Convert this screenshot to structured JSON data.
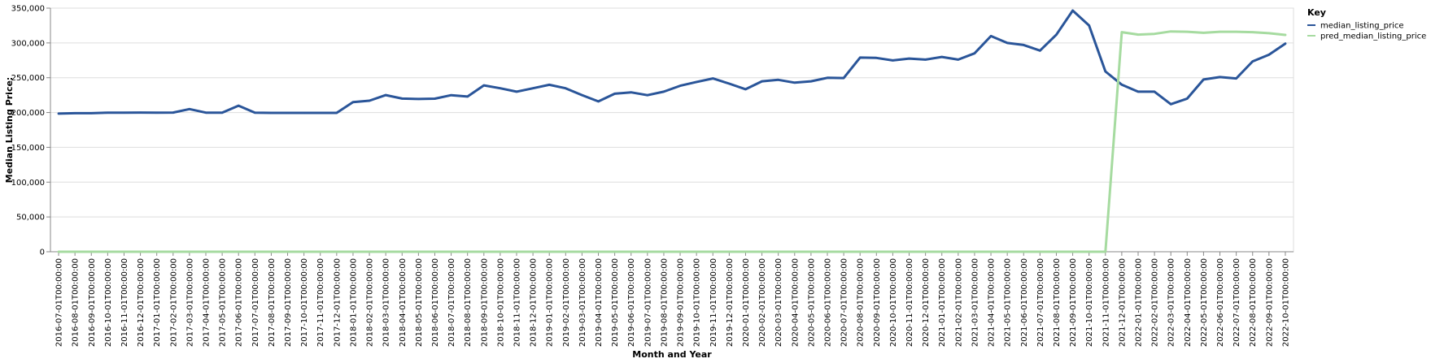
{
  "chart_data": {
    "type": "line",
    "xlabel": "Month and Year",
    "ylabel": "Median Listing Price:",
    "ylim": [
      0,
      350000
    ],
    "y_ticks": [
      "0",
      "50,000",
      "100,000",
      "150,000",
      "200,000",
      "250,000",
      "300,000",
      "350,000"
    ],
    "grid": true,
    "legend": {
      "title": "Key",
      "placement": "right"
    },
    "x": [
      "2016-07-01T00:00:00",
      "2016-08-01T00:00:00",
      "2016-09-01T00:00:00",
      "2016-10-01T00:00:00",
      "2016-11-01T00:00:00",
      "2016-12-01T00:00:00",
      "2017-01-01T00:00:00",
      "2017-02-01T00:00:00",
      "2017-03-01T00:00:00",
      "2017-04-01T00:00:00",
      "2017-05-01T00:00:00",
      "2017-06-01T00:00:00",
      "2017-07-01T00:00:00",
      "2017-08-01T00:00:00",
      "2017-09-01T00:00:00",
      "2017-10-01T00:00:00",
      "2017-11-01T00:00:00",
      "2017-12-01T00:00:00",
      "2018-01-01T00:00:00",
      "2018-02-01T00:00:00",
      "2018-03-01T00:00:00",
      "2018-04-01T00:00:00",
      "2018-05-01T00:00:00",
      "2018-06-01T00:00:00",
      "2018-07-01T00:00:00",
      "2018-08-01T00:00:00",
      "2018-09-01T00:00:00",
      "2018-10-01T00:00:00",
      "2018-11-01T00:00:00",
      "2018-12-01T00:00:00",
      "2019-01-01T00:00:00",
      "2019-02-01T00:00:00",
      "2019-03-01T00:00:00",
      "2019-04-01T00:00:00",
      "2019-05-01T00:00:00",
      "2019-06-01T00:00:00",
      "2019-07-01T00:00:00",
      "2019-08-01T00:00:00",
      "2019-09-01T00:00:00",
      "2019-10-01T00:00:00",
      "2019-11-01T00:00:00",
      "2019-12-01T00:00:00",
      "2020-01-01T00:00:00",
      "2020-02-01T00:00:00",
      "2020-03-01T00:00:00",
      "2020-04-01T00:00:00",
      "2020-05-01T00:00:00",
      "2020-06-01T00:00:00",
      "2020-07-01T00:00:00",
      "2020-08-01T00:00:00",
      "2020-09-01T00:00:00",
      "2020-10-01T00:00:00",
      "2020-11-01T00:00:00",
      "2020-12-01T00:00:00",
      "2021-01-01T00:00:00",
      "2021-02-01T00:00:00",
      "2021-03-01T00:00:00",
      "2021-04-01T00:00:00",
      "2021-05-01T00:00:00",
      "2021-06-01T00:00:00",
      "2021-07-01T00:00:00",
      "2021-08-01T00:00:00",
      "2021-09-01T00:00:00",
      "2021-10-01T00:00:00",
      "2021-11-01T00:00:00",
      "2021-12-01T00:00:00",
      "2022-01-01T00:00:00",
      "2022-02-01T00:00:00",
      "2022-03-01T00:00:00",
      "2022-04-01T00:00:00",
      "2022-05-01T00:00:00",
      "2022-06-01T00:00:00",
      "2022-07-01T00:00:00",
      "2022-08-01T00:00:00",
      "2022-09-01T00:00:00",
      "2022-10-01T00:00:00"
    ],
    "series": [
      {
        "name": "median_listing_price",
        "color": "#2a5599",
        "values": [
          198500,
          199000,
          199000,
          199900,
          199900,
          200000,
          199900,
          200000,
          205000,
          199900,
          199900,
          209900,
          199900,
          199500,
          199500,
          199500,
          199500,
          199500,
          214900,
          217000,
          225000,
          220000,
          219500,
          219900,
          224900,
          223000,
          239000,
          234900,
          229900,
          234900,
          239900,
          234900,
          225000,
          216000,
          227000,
          229000,
          224900,
          229900,
          238500,
          243900,
          249000,
          241500,
          233500,
          244900,
          247000,
          242900,
          244900,
          249900,
          249500,
          279000,
          278500,
          274900,
          277500,
          276000,
          279900,
          276000,
          285000,
          309900,
          299900,
          297000,
          289000,
          311900,
          346500,
          325000,
          259000,
          240000,
          230000,
          229900,
          212000,
          220000,
          247400,
          251000,
          249000,
          273500,
          283000,
          299000
        ]
      },
      {
        "name": "pred_median_listing_price",
        "color": "#a6dba0",
        "values": [
          0,
          0,
          0,
          0,
          0,
          0,
          0,
          0,
          0,
          0,
          0,
          0,
          0,
          0,
          0,
          0,
          0,
          0,
          0,
          0,
          0,
          0,
          0,
          0,
          0,
          0,
          0,
          0,
          0,
          0,
          0,
          0,
          0,
          0,
          0,
          0,
          0,
          0,
          0,
          0,
          0,
          0,
          0,
          0,
          0,
          0,
          0,
          0,
          0,
          0,
          0,
          0,
          0,
          0,
          0,
          0,
          0,
          0,
          0,
          0,
          0,
          0,
          0,
          0,
          0,
          315500,
          312000,
          313000,
          316500,
          316000,
          314500,
          316000,
          316000,
          315500,
          314000,
          311500
        ]
      }
    ]
  }
}
